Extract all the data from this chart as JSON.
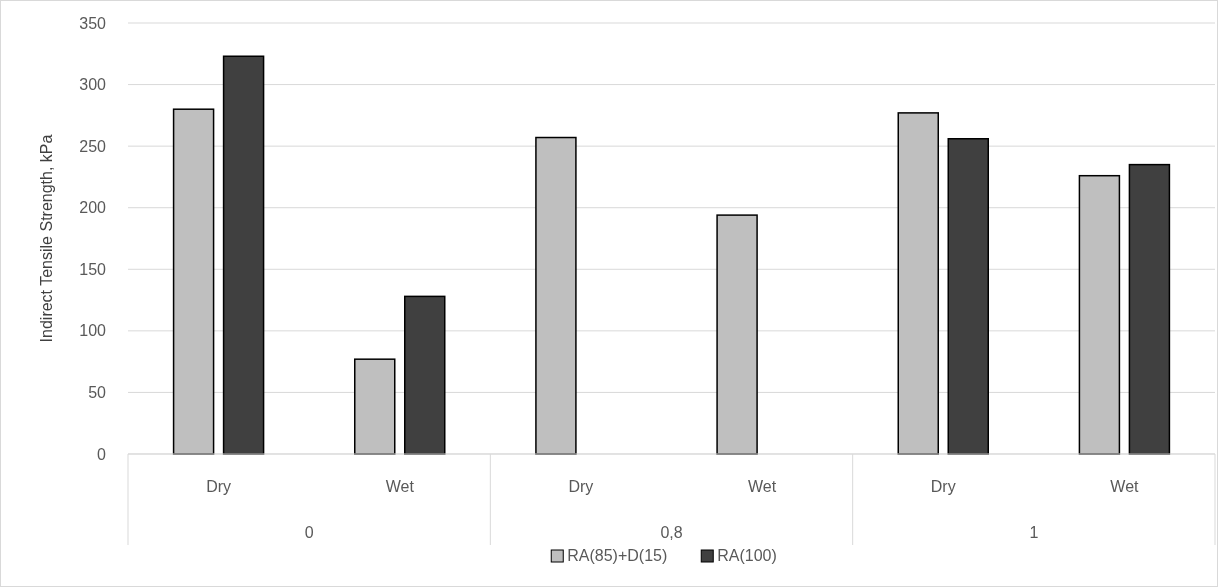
{
  "chart_data": {
    "type": "bar",
    "ylabel": "Indirect Tensile Strength, kPa",
    "categories": [
      "Dry",
      "Wet",
      "Dry",
      "Wet",
      "Dry",
      "Wet"
    ],
    "series": [
      {
        "name": "RA(85)+D(15)",
        "color": "#bfbfbf",
        "values": [
          280,
          77,
          257,
          194,
          277,
          226
        ]
      },
      {
        "name": "RA(100)",
        "color": "#404040",
        "values": [
          323,
          128,
          null,
          null,
          256,
          235
        ]
      }
    ],
    "ylim": [
      0,
      350
    ],
    "yticks": [
      0,
      50,
      100,
      150,
      200,
      250,
      300,
      350
    ],
    "grid": "y",
    "legend": "bottom",
    "annotations": [
      "0",
      "0,8",
      "1"
    ]
  }
}
